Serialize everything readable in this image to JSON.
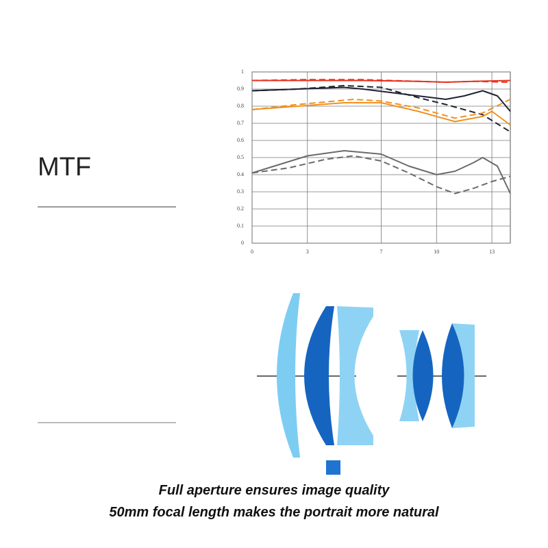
{
  "heading": "MTF",
  "captions": [
    "Full aperture ensures image quality",
    "50mm focal length makes the portrait more natural"
  ],
  "chart_data": {
    "type": "line",
    "xlim": [
      0,
      14
    ],
    "xticks": [
      0,
      3,
      7,
      10,
      13
    ],
    "ylim": [
      0,
      1
    ],
    "yticks": [
      0,
      0.1,
      0.2,
      0.3,
      0.4,
      0.5,
      0.6,
      0.7,
      0.8,
      0.9,
      1
    ],
    "grid": true,
    "series": [
      {
        "color": "#e8321e",
        "dash": false,
        "x": [
          0,
          3,
          6,
          9,
          10.5,
          12,
          14
        ],
        "values": [
          0.95,
          0.95,
          0.95,
          0.945,
          0.94,
          0.945,
          0.95
        ]
      },
      {
        "color": "#e8321e",
        "dash": true,
        "x": [
          0,
          3,
          6,
          9,
          10.5,
          12,
          14
        ],
        "values": [
          0.95,
          0.955,
          0.955,
          0.945,
          0.94,
          0.945,
          0.94
        ]
      },
      {
        "color": "#1e2230",
        "dash": false,
        "x": [
          0,
          2.5,
          5,
          6,
          7.5,
          9,
          10.5,
          11.5,
          12.5,
          13.3,
          14
        ],
        "values": [
          0.89,
          0.9,
          0.91,
          0.9,
          0.88,
          0.86,
          0.84,
          0.86,
          0.89,
          0.86,
          0.77
        ]
      },
      {
        "color": "#1e2230",
        "dash": true,
        "x": [
          0,
          2.5,
          5,
          7,
          9,
          10.5,
          12.5,
          14
        ],
        "values": [
          0.89,
          0.9,
          0.92,
          0.91,
          0.85,
          0.81,
          0.75,
          0.65
        ]
      },
      {
        "color": "#f0901e",
        "dash": false,
        "x": [
          0,
          2.5,
          5,
          7,
          9,
          11,
          12.5,
          13,
          14
        ],
        "values": [
          0.78,
          0.8,
          0.82,
          0.82,
          0.77,
          0.71,
          0.74,
          0.77,
          0.69
        ]
      },
      {
        "color": "#f0901e",
        "dash": true,
        "x": [
          0,
          2.5,
          5.5,
          7,
          9,
          11,
          12.5,
          14
        ],
        "values": [
          0.78,
          0.81,
          0.84,
          0.83,
          0.79,
          0.73,
          0.76,
          0.84
        ]
      },
      {
        "color": "#6a6a6a",
        "dash": false,
        "x": [
          0,
          1.5,
          3,
          5,
          7,
          8.5,
          10,
          11,
          12,
          12.5,
          13.3,
          14
        ],
        "values": [
          0.41,
          0.46,
          0.51,
          0.54,
          0.52,
          0.45,
          0.4,
          0.42,
          0.47,
          0.5,
          0.45,
          0.29
        ]
      },
      {
        "color": "#6a6a6a",
        "dash": true,
        "x": [
          0,
          2,
          4,
          5.5,
          7,
          8.5,
          10,
          11,
          12,
          13,
          14
        ],
        "values": [
          0.41,
          0.44,
          0.49,
          0.51,
          0.48,
          0.41,
          0.33,
          0.29,
          0.32,
          0.36,
          0.39
        ]
      }
    ]
  }
}
